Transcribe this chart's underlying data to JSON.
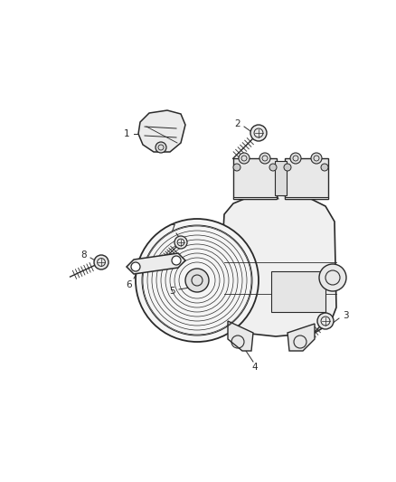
{
  "background_color": "#ffffff",
  "line_color": "#2a2a2a",
  "label_color": "#2a2a2a",
  "fig_width": 4.38,
  "fig_height": 5.33,
  "dpi": 100,
  "label_fontsize": 7.5
}
